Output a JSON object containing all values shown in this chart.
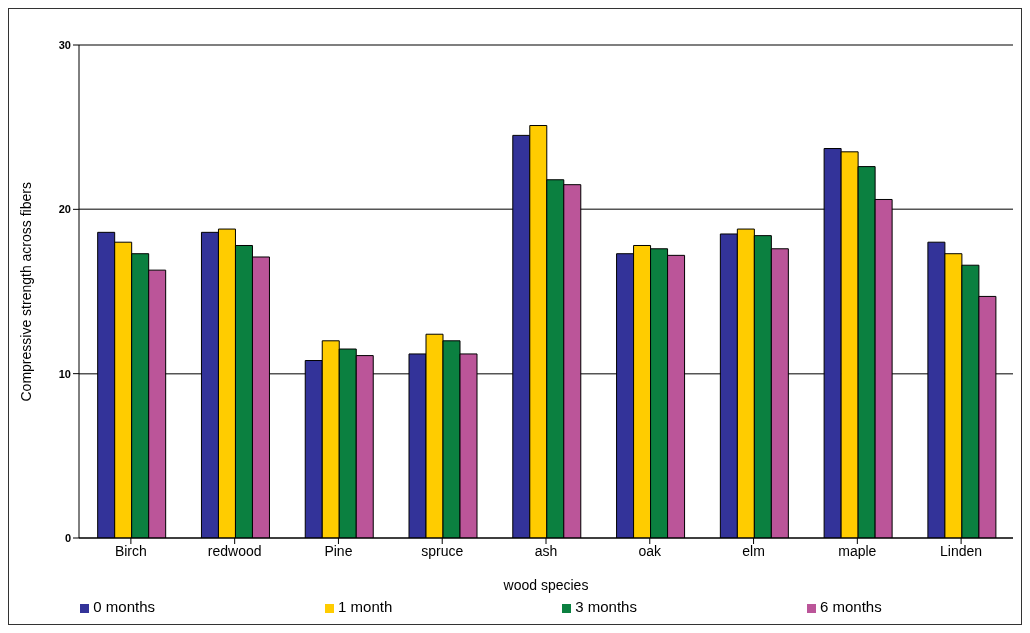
{
  "chart_data": {
    "type": "bar",
    "xlabel": "wood species",
    "ylabel": "Compressive strength across fibers",
    "categories": [
      "Birch",
      "redwood",
      "Pine",
      "spruce",
      "ash",
      "oak",
      "elm",
      "maple",
      "Linden"
    ],
    "series": [
      {
        "name": "0 months",
        "color": "#333399",
        "values": [
          18.6,
          18.6,
          10.8,
          11.2,
          24.5,
          17.3,
          18.5,
          23.7,
          18.0
        ]
      },
      {
        "name": "1 month",
        "color": "#ffcc00",
        "values": [
          18.0,
          18.8,
          12.0,
          12.4,
          25.1,
          17.8,
          18.8,
          23.5,
          17.3
        ]
      },
      {
        "name": "3 months",
        "color": "#0b8040",
        "values": [
          17.3,
          17.8,
          11.5,
          12.0,
          21.8,
          17.6,
          18.4,
          22.6,
          16.6
        ]
      },
      {
        "name": "6 months",
        "color": "#bb5599",
        "values": [
          16.3,
          17.1,
          11.1,
          11.2,
          21.5,
          17.2,
          17.6,
          20.6,
          14.7
        ]
      }
    ],
    "ylim": [
      0,
      30
    ],
    "yticks": [
      0,
      10,
      20,
      30
    ],
    "grid": "y",
    "legend": "bottom"
  }
}
